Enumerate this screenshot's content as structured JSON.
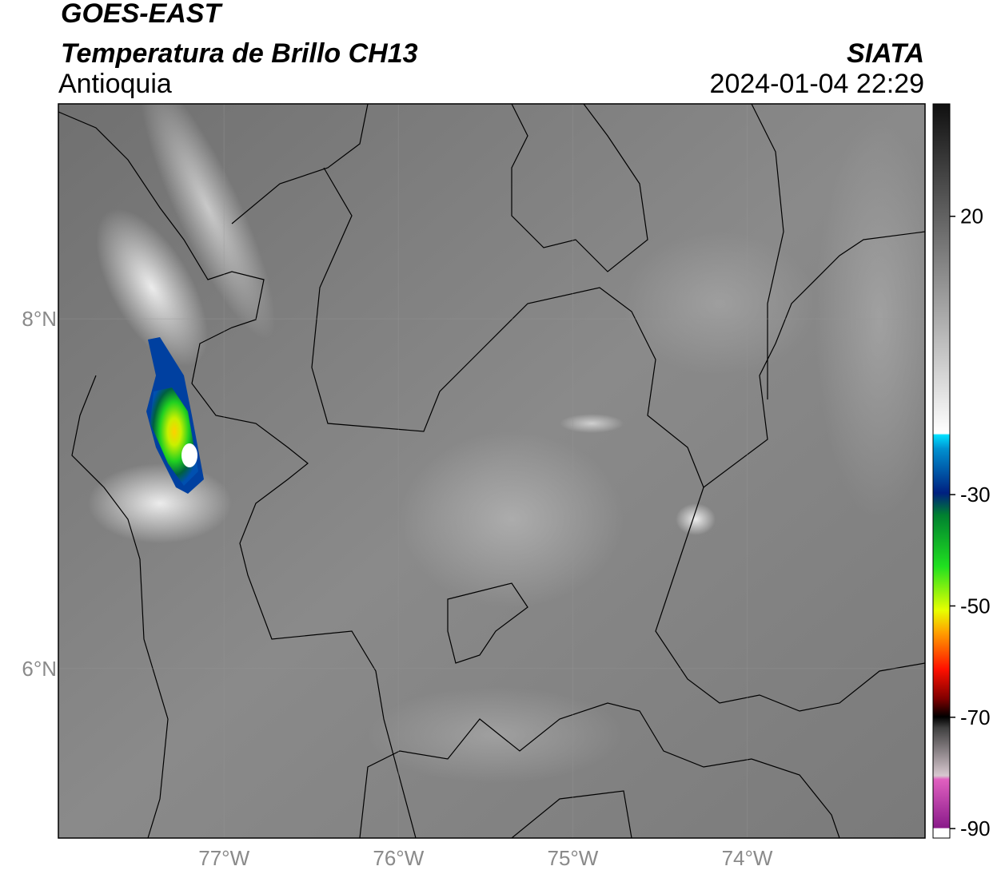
{
  "header": {
    "title": "GOES-EAST",
    "subtitle": "Temperatura de Brillo CH13",
    "region": "Antioquia",
    "source": "SIATA",
    "datetime": "2024-01-04 22:29"
  },
  "map": {
    "xlim": [
      -77.95,
      -72.98
    ],
    "ylim": [
      5.03,
      9.23
    ],
    "xticks": [
      {
        "value": -77,
        "label": "77°W"
      },
      {
        "value": -76,
        "label": "76°W"
      },
      {
        "value": -75,
        "label": "75°W"
      },
      {
        "value": -74,
        "label": "74°W"
      }
    ],
    "yticks": [
      {
        "value": 6,
        "label": "6°N"
      },
      {
        "value": 8,
        "label": "8°N"
      }
    ],
    "grid": true
  },
  "colorbar": {
    "lim": [
      -91.7,
      40.2
    ],
    "ticks": [
      20,
      -30,
      -50,
      -70,
      -90
    ]
  }
}
